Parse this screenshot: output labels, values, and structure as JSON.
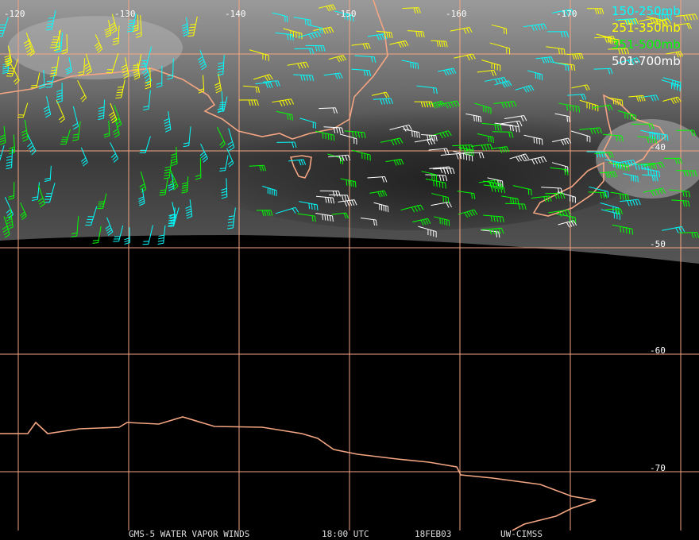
{
  "map": {
    "longitude_labels": [
      "-120",
      "-130",
      "-140",
      "-150",
      "-160",
      "-170"
    ],
    "latitude_labels": [
      "-40",
      "-50",
      "-60",
      "-70"
    ],
    "legend": [
      {
        "label": "150-250mb",
        "color": "#00ffff"
      },
      {
        "label": "251-350mb",
        "color": "#ffff00"
      },
      {
        "label": "351-500mb",
        "color": "#00ff00"
      },
      {
        "label": "501-700mb",
        "color": "#ffffff"
      }
    ],
    "footer": [
      "GMS-5 WATER VAPOR WINDS",
      "18:00 UTC",
      "18FEB03",
      "UW-CIMSS"
    ]
  }
}
